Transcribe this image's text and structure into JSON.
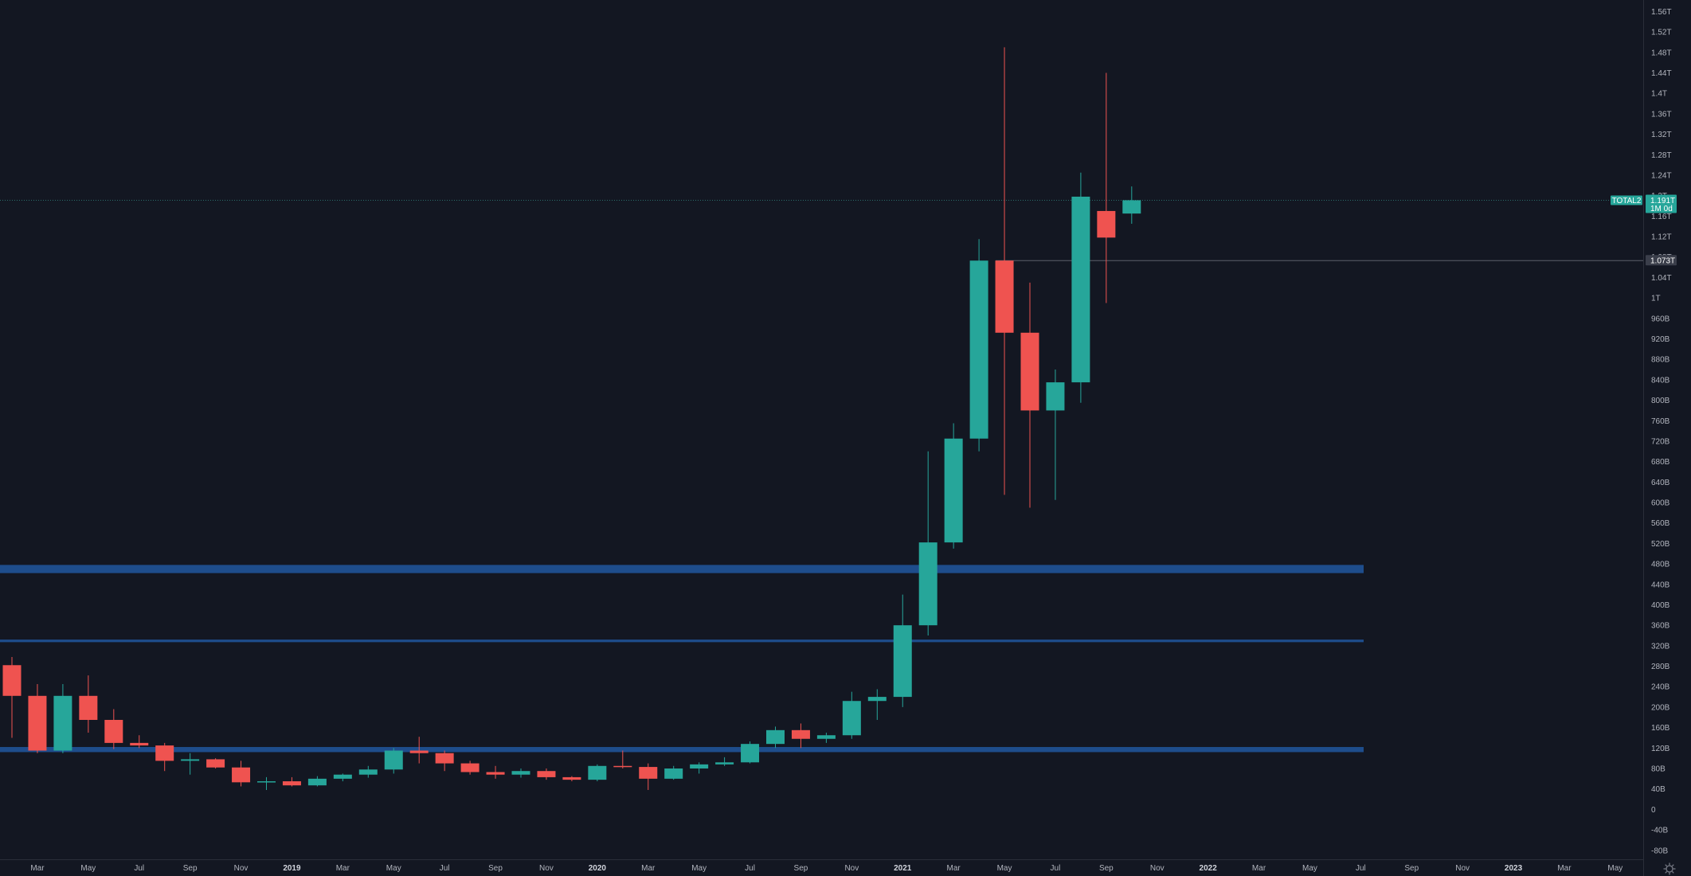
{
  "colors": {
    "background": "#131722",
    "axis_text": "#b2b5be",
    "up": "#26a69a",
    "down": "#ef5350",
    "zone": "#1e4d8c",
    "price_line": "#2b6f6a",
    "ref_line": "#5d606b",
    "ref_badge": "#3a3e4a"
  },
  "price_badge": {
    "symbol": "TOTAL2",
    "value": "1.191T",
    "value_num": 1.191,
    "countdown": "1M 0d"
  },
  "ref_badge": {
    "value": "1.073T",
    "value_num": 1.073
  },
  "chart_data": {
    "type": "candlestick",
    "title": "",
    "xlabel": "",
    "ylabel": "",
    "interval": "1M",
    "unit": "T",
    "ylim": [
      -0.0975,
      1.5825
    ],
    "y_ticks": [
      {
        "value": 1.56,
        "label": "1.56T"
      },
      {
        "value": 1.52,
        "label": "1.52T"
      },
      {
        "value": 1.48,
        "label": "1.48T"
      },
      {
        "value": 1.44,
        "label": "1.44T"
      },
      {
        "value": 1.4,
        "label": "1.4T"
      },
      {
        "value": 1.36,
        "label": "1.36T"
      },
      {
        "value": 1.32,
        "label": "1.32T"
      },
      {
        "value": 1.28,
        "label": "1.28T"
      },
      {
        "value": 1.24,
        "label": "1.24T"
      },
      {
        "value": 1.2,
        "label": "1.2T"
      },
      {
        "value": 1.16,
        "label": "1.16T"
      },
      {
        "value": 1.12,
        "label": "1.12T"
      },
      {
        "value": 1.08,
        "label": "1.08T"
      },
      {
        "value": 1.04,
        "label": "1.04T"
      },
      {
        "value": 1.0,
        "label": "1T"
      },
      {
        "value": 0.96,
        "label": "960B"
      },
      {
        "value": 0.92,
        "label": "920B"
      },
      {
        "value": 0.88,
        "label": "880B"
      },
      {
        "value": 0.84,
        "label": "840B"
      },
      {
        "value": 0.8,
        "label": "800B"
      },
      {
        "value": 0.76,
        "label": "760B"
      },
      {
        "value": 0.72,
        "label": "720B"
      },
      {
        "value": 0.68,
        "label": "680B"
      },
      {
        "value": 0.64,
        "label": "640B"
      },
      {
        "value": 0.6,
        "label": "600B"
      },
      {
        "value": 0.56,
        "label": "560B"
      },
      {
        "value": 0.52,
        "label": "520B"
      },
      {
        "value": 0.48,
        "label": "480B"
      },
      {
        "value": 0.44,
        "label": "440B"
      },
      {
        "value": 0.4,
        "label": "400B"
      },
      {
        "value": 0.36,
        "label": "360B"
      },
      {
        "value": 0.32,
        "label": "320B"
      },
      {
        "value": 0.28,
        "label": "280B"
      },
      {
        "value": 0.24,
        "label": "240B"
      },
      {
        "value": 0.2,
        "label": "200B"
      },
      {
        "value": 0.16,
        "label": "160B"
      },
      {
        "value": 0.12,
        "label": "120B"
      },
      {
        "value": 0.08,
        "label": "80B"
      },
      {
        "value": 0.04,
        "label": "40B"
      },
      {
        "value": 0.0,
        "label": "0"
      },
      {
        "value": -0.04,
        "label": "-40B"
      },
      {
        "value": -0.08,
        "label": "-80B"
      }
    ],
    "x_ticks": [
      {
        "index": 0,
        "label": "Mar",
        "year": false
      },
      {
        "index": 2,
        "label": "May",
        "year": false
      },
      {
        "index": 4,
        "label": "Jul",
        "year": false
      },
      {
        "index": 6,
        "label": "Sep",
        "year": false
      },
      {
        "index": 8,
        "label": "Nov",
        "year": false
      },
      {
        "index": 10,
        "label": "2019",
        "year": true
      },
      {
        "index": 12,
        "label": "Mar",
        "year": false
      },
      {
        "index": 14,
        "label": "May",
        "year": false
      },
      {
        "index": 16,
        "label": "Jul",
        "year": false
      },
      {
        "index": 18,
        "label": "Sep",
        "year": false
      },
      {
        "index": 20,
        "label": "Nov",
        "year": false
      },
      {
        "index": 22,
        "label": "2020",
        "year": true
      },
      {
        "index": 24,
        "label": "Mar",
        "year": false
      },
      {
        "index": 26,
        "label": "May",
        "year": false
      },
      {
        "index": 28,
        "label": "Jul",
        "year": false
      },
      {
        "index": 30,
        "label": "Sep",
        "year": false
      },
      {
        "index": 32,
        "label": "Nov",
        "year": false
      },
      {
        "index": 34,
        "label": "2021",
        "year": true
      },
      {
        "index": 36,
        "label": "Mar",
        "year": false
      },
      {
        "index": 38,
        "label": "May",
        "year": false
      },
      {
        "index": 40,
        "label": "Jul",
        "year": false
      },
      {
        "index": 42,
        "label": "Sep",
        "year": false
      },
      {
        "index": 44,
        "label": "Nov",
        "year": false
      },
      {
        "index": 46,
        "label": "2022",
        "year": true
      },
      {
        "index": 48,
        "label": "Mar",
        "year": false
      },
      {
        "index": 50,
        "label": "May",
        "year": false
      },
      {
        "index": 52,
        "label": "Jul",
        "year": false
      },
      {
        "index": 54,
        "label": "Sep",
        "year": false
      },
      {
        "index": 56,
        "label": "Nov",
        "year": false
      },
      {
        "index": 58,
        "label": "2023",
        "year": true
      },
      {
        "index": 60,
        "label": "Mar",
        "year": false
      },
      {
        "index": 62,
        "label": "May",
        "year": false
      }
    ],
    "candles": [
      {
        "month": "2018-02",
        "open": 0.282,
        "high": 0.298,
        "low": 0.14,
        "close": 0.222
      },
      {
        "month": "2018-03",
        "open": 0.222,
        "high": 0.245,
        "low": 0.11,
        "close": 0.115
      },
      {
        "month": "2018-04",
        "open": 0.115,
        "high": 0.245,
        "low": 0.11,
        "close": 0.222
      },
      {
        "month": "2018-05",
        "open": 0.222,
        "high": 0.262,
        "low": 0.15,
        "close": 0.175
      },
      {
        "month": "2018-06",
        "open": 0.175,
        "high": 0.196,
        "low": 0.118,
        "close": 0.13
      },
      {
        "month": "2018-07",
        "open": 0.13,
        "high": 0.145,
        "low": 0.12,
        "close": 0.125
      },
      {
        "month": "2018-08",
        "open": 0.125,
        "high": 0.13,
        "low": 0.075,
        "close": 0.095
      },
      {
        "month": "2018-09",
        "open": 0.095,
        "high": 0.11,
        "low": 0.068,
        "close": 0.098
      },
      {
        "month": "2018-10",
        "open": 0.098,
        "high": 0.1,
        "low": 0.08,
        "close": 0.082
      },
      {
        "month": "2018-11",
        "open": 0.082,
        "high": 0.095,
        "low": 0.045,
        "close": 0.053
      },
      {
        "month": "2018-12",
        "open": 0.053,
        "high": 0.063,
        "low": 0.038,
        "close": 0.055
      },
      {
        "month": "2019-01",
        "open": 0.055,
        "high": 0.063,
        "low": 0.045,
        "close": 0.047
      },
      {
        "month": "2019-02",
        "open": 0.047,
        "high": 0.065,
        "low": 0.045,
        "close": 0.06
      },
      {
        "month": "2019-03",
        "open": 0.06,
        "high": 0.07,
        "low": 0.055,
        "close": 0.068
      },
      {
        "month": "2019-04",
        "open": 0.068,
        "high": 0.085,
        "low": 0.062,
        "close": 0.078
      },
      {
        "month": "2019-05",
        "open": 0.078,
        "high": 0.12,
        "low": 0.07,
        "close": 0.115
      },
      {
        "month": "2019-06",
        "open": 0.115,
        "high": 0.142,
        "low": 0.09,
        "close": 0.11
      },
      {
        "month": "2019-07",
        "open": 0.11,
        "high": 0.115,
        "low": 0.075,
        "close": 0.09
      },
      {
        "month": "2019-08",
        "open": 0.09,
        "high": 0.095,
        "low": 0.068,
        "close": 0.073
      },
      {
        "month": "2019-09",
        "open": 0.073,
        "high": 0.085,
        "low": 0.06,
        "close": 0.068
      },
      {
        "month": "2019-10",
        "open": 0.068,
        "high": 0.08,
        "low": 0.062,
        "close": 0.075
      },
      {
        "month": "2019-11",
        "open": 0.075,
        "high": 0.08,
        "low": 0.058,
        "close": 0.063
      },
      {
        "month": "2019-12",
        "open": 0.063,
        "high": 0.065,
        "low": 0.055,
        "close": 0.058
      },
      {
        "month": "2020-01",
        "open": 0.058,
        "high": 0.088,
        "low": 0.055,
        "close": 0.085
      },
      {
        "month": "2020-02",
        "open": 0.085,
        "high": 0.115,
        "low": 0.08,
        "close": 0.083
      },
      {
        "month": "2020-03",
        "open": 0.083,
        "high": 0.09,
        "low": 0.038,
        "close": 0.06
      },
      {
        "month": "2020-04",
        "open": 0.06,
        "high": 0.085,
        "low": 0.058,
        "close": 0.08
      },
      {
        "month": "2020-05",
        "open": 0.08,
        "high": 0.092,
        "low": 0.07,
        "close": 0.088
      },
      {
        "month": "2020-06",
        "open": 0.088,
        "high": 0.102,
        "low": 0.085,
        "close": 0.092
      },
      {
        "month": "2020-07",
        "open": 0.092,
        "high": 0.133,
        "low": 0.09,
        "close": 0.128
      },
      {
        "month": "2020-08",
        "open": 0.128,
        "high": 0.162,
        "low": 0.12,
        "close": 0.155
      },
      {
        "month": "2020-09",
        "open": 0.155,
        "high": 0.168,
        "low": 0.12,
        "close": 0.138
      },
      {
        "month": "2020-10",
        "open": 0.138,
        "high": 0.15,
        "low": 0.13,
        "close": 0.145
      },
      {
        "month": "2020-11",
        "open": 0.145,
        "high": 0.23,
        "low": 0.138,
        "close": 0.212
      },
      {
        "month": "2020-12",
        "open": 0.212,
        "high": 0.235,
        "low": 0.175,
        "close": 0.22
      },
      {
        "month": "2021-01",
        "open": 0.22,
        "high": 0.42,
        "low": 0.2,
        "close": 0.36
      },
      {
        "month": "2021-02",
        "open": 0.36,
        "high": 0.7,
        "low": 0.34,
        "close": 0.522
      },
      {
        "month": "2021-03",
        "open": 0.522,
        "high": 0.755,
        "low": 0.51,
        "close": 0.725
      },
      {
        "month": "2021-04",
        "open": 0.725,
        "high": 1.115,
        "low": 0.7,
        "close": 1.073
      },
      {
        "month": "2021-05",
        "open": 1.073,
        "high": 1.49,
        "low": 0.615,
        "close": 0.932
      },
      {
        "month": "2021-06",
        "open": 0.932,
        "high": 1.03,
        "low": 0.59,
        "close": 0.78
      },
      {
        "month": "2021-07",
        "open": 0.78,
        "high": 0.86,
        "low": 0.605,
        "close": 0.835
      },
      {
        "month": "2021-08",
        "open": 0.835,
        "high": 1.245,
        "low": 0.795,
        "close": 1.198
      },
      {
        "month": "2021-09",
        "open": 1.17,
        "high": 1.44,
        "low": 0.99,
        "close": 1.118
      },
      {
        "month": "2021-10",
        "open": 1.165,
        "high": 1.218,
        "low": 1.145,
        "close": 1.191
      }
    ],
    "zones": [
      {
        "low": 0.462,
        "high": 0.478
      },
      {
        "low": 0.327,
        "high": 0.332
      },
      {
        "low": 0.112,
        "high": 0.122
      }
    ],
    "current_price": 1.191,
    "reference_level": 1.073,
    "grid": false,
    "legend": "none"
  }
}
